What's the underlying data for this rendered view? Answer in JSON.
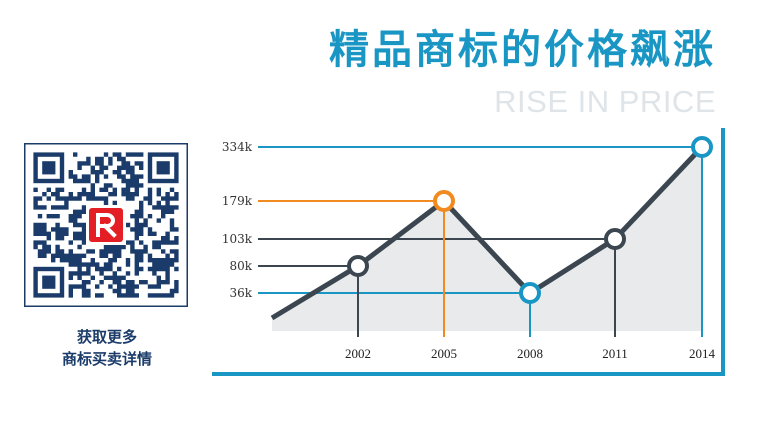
{
  "title": "精品商标的价格飙涨",
  "subtitle": "RISE IN PRICE",
  "qr_caption": [
    "获取更多",
    "商标买卖详情"
  ],
  "colors": {
    "accent_blue": "#1a96c4",
    "orange": "#f28b1f",
    "dark": "#3b4650",
    "navy": "#1b3c6a",
    "red": "#e31e24"
  },
  "chart_data": {
    "type": "line",
    "x": [
      2002,
      2005,
      2008,
      2011,
      2014
    ],
    "values": [
      80,
      179,
      36,
      103,
      334
    ],
    "tick_labels_x": [
      "2002",
      "2005",
      "2008",
      "2011",
      "2014"
    ],
    "tick_labels_y": [
      "334k",
      "179k",
      "103k",
      "80k",
      "36k"
    ],
    "point_colors": [
      "#3b4650",
      "#f28b1f",
      "#1a96c4",
      "#3b4650",
      "#1a96c4"
    ],
    "title": "精品商标的价格飙涨",
    "subtitle": "RISE IN PRICE",
    "xlabel": "",
    "ylabel": "",
    "area_fill": true
  }
}
